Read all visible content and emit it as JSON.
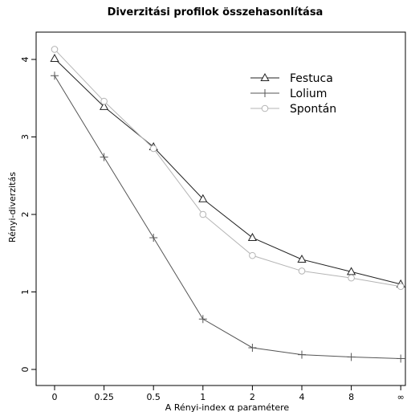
{
  "chart_data": {
    "type": "line",
    "title": "Diverzitási profilok összehasonlítása",
    "xlabel": "A Rényi-index α paramétere",
    "ylabel": "Rényi-diverzitás",
    "categories": [
      "0",
      "0.25",
      "0.5",
      "1",
      "2",
      "4",
      "8",
      "∞"
    ],
    "y_ticks": [
      "0",
      "1",
      "2",
      "3",
      "4"
    ],
    "ylim": [
      0,
      4.3
    ],
    "legend_position": "top-right",
    "grid": false,
    "series": [
      {
        "name": "Festuca",
        "marker": "triangle",
        "color": "#222222",
        "values": [
          4.01,
          3.39,
          2.87,
          2.2,
          1.7,
          1.42,
          1.26,
          1.1
        ]
      },
      {
        "name": "Lolium",
        "marker": "plus",
        "color": "#555555",
        "values": [
          3.79,
          2.74,
          1.7,
          0.65,
          0.28,
          0.19,
          0.16,
          0.14
        ]
      },
      {
        "name": "Spontán",
        "marker": "circle",
        "color": "#b4b4b4",
        "values": [
          4.13,
          3.46,
          2.85,
          2.0,
          1.47,
          1.27,
          1.18,
          1.07
        ]
      }
    ]
  }
}
